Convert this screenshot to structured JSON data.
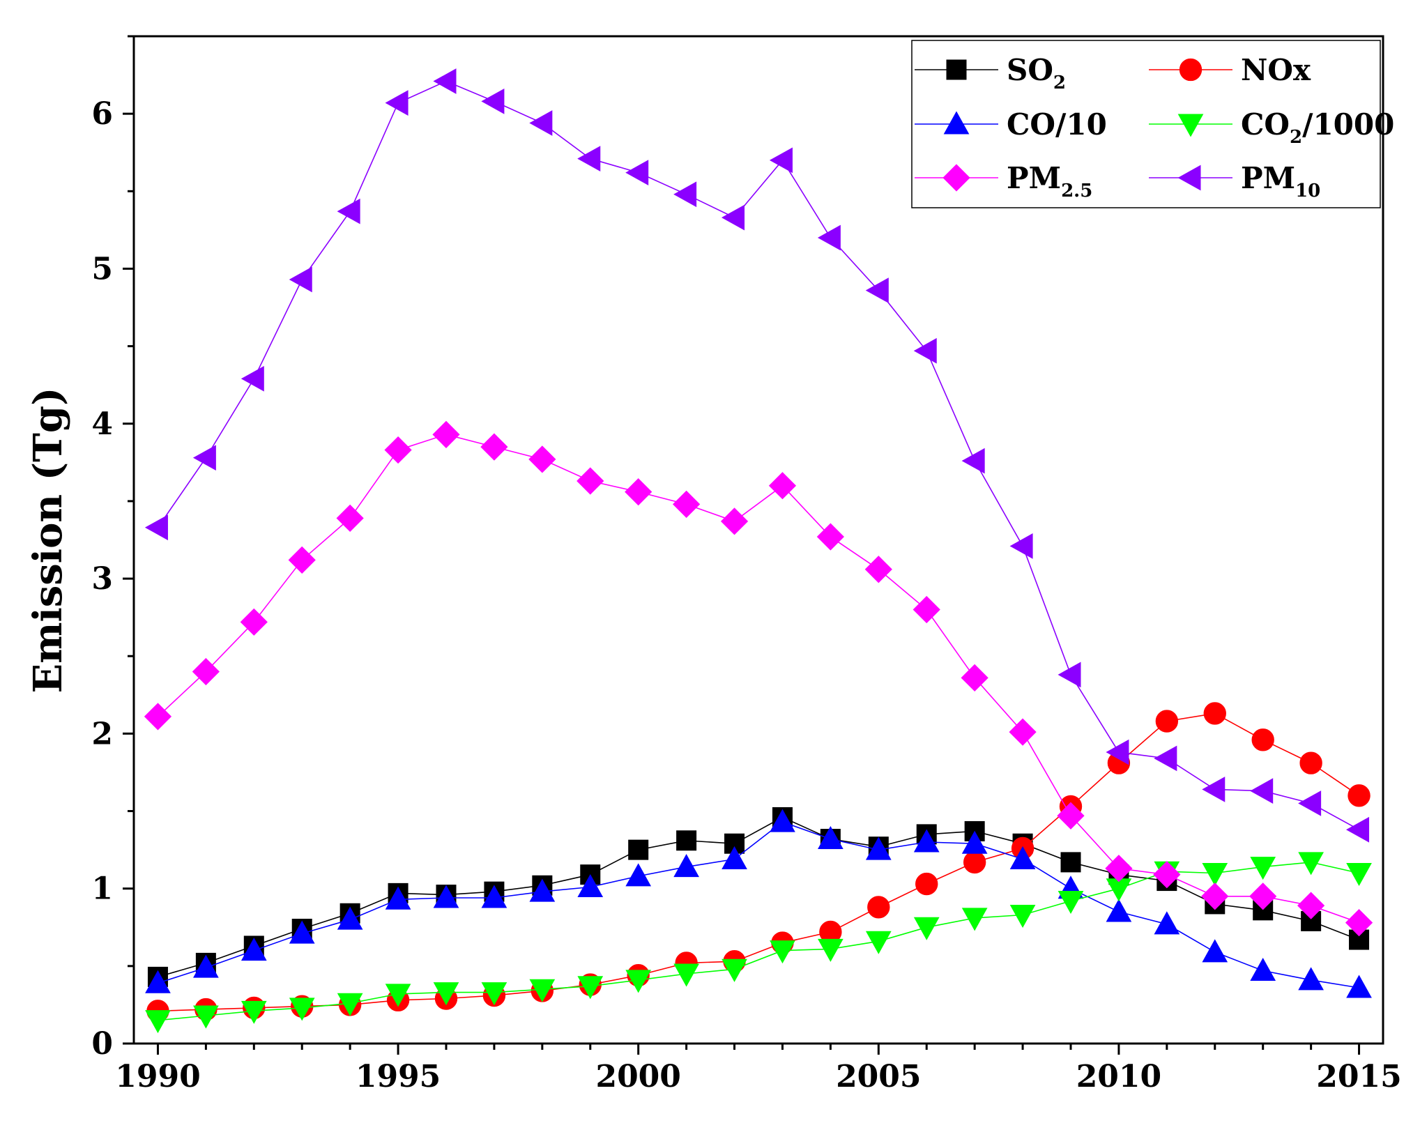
{
  "chart_data": {
    "type": "line",
    "title": "",
    "xlabel": "",
    "ylabel": "Emission (Tg)",
    "xlim": [
      1989.5,
      2015.5
    ],
    "ylim": [
      0,
      6.5
    ],
    "x_ticks": [
      1990,
      1995,
      2000,
      2005,
      2010,
      2015
    ],
    "y_ticks": [
      0,
      1,
      2,
      3,
      4,
      5,
      6
    ],
    "grid": false,
    "legend_position": "top-right",
    "x": [
      1990,
      1991,
      1992,
      1993,
      1994,
      1995,
      1996,
      1997,
      1998,
      1999,
      2000,
      2001,
      2002,
      2003,
      2004,
      2005,
      2006,
      2007,
      2008,
      2009,
      2010,
      2011,
      2012,
      2013,
      2014,
      2015
    ],
    "series": [
      {
        "name": "SO2",
        "label_main": "SO",
        "label_sub": "2",
        "label_tail": "",
        "color": "#000000",
        "marker": "square",
        "values": [
          0.43,
          0.52,
          0.63,
          0.74,
          0.84,
          0.97,
          0.96,
          0.98,
          1.02,
          1.09,
          1.25,
          1.31,
          1.29,
          1.46,
          1.32,
          1.27,
          1.35,
          1.37,
          1.29,
          1.17,
          1.09,
          1.05,
          0.9,
          0.86,
          0.79,
          0.67
        ]
      },
      {
        "name": "NOx",
        "label_main": "NOx",
        "label_sub": "",
        "label_tail": "",
        "color": "#ff0000",
        "marker": "circle",
        "values": [
          0.21,
          0.22,
          0.23,
          0.24,
          0.25,
          0.28,
          0.29,
          0.31,
          0.34,
          0.38,
          0.44,
          0.52,
          0.53,
          0.65,
          0.72,
          0.88,
          1.03,
          1.17,
          1.26,
          1.53,
          1.81,
          2.08,
          2.13,
          1.96,
          1.81,
          1.6
        ]
      },
      {
        "name": "CO/10",
        "label_main": "CO/10",
        "label_sub": "",
        "label_tail": "",
        "color": "#0000ff",
        "marker": "triangle-up",
        "values": [
          0.39,
          0.49,
          0.6,
          0.71,
          0.8,
          0.93,
          0.94,
          0.94,
          0.98,
          1.01,
          1.08,
          1.14,
          1.19,
          1.43,
          1.32,
          1.25,
          1.3,
          1.29,
          1.19,
          1.0,
          0.85,
          0.77,
          0.59,
          0.47,
          0.41,
          0.36
        ]
      },
      {
        "name": "CO2/1000",
        "label_main": "CO",
        "label_sub": "2",
        "label_tail": "/1000",
        "color": "#00ff00",
        "marker": "triangle-down",
        "values": [
          0.15,
          0.18,
          0.21,
          0.23,
          0.26,
          0.32,
          0.33,
          0.33,
          0.35,
          0.37,
          0.41,
          0.45,
          0.48,
          0.6,
          0.61,
          0.66,
          0.75,
          0.81,
          0.83,
          0.92,
          1.0,
          1.11,
          1.1,
          1.14,
          1.17,
          1.1
        ]
      },
      {
        "name": "PM2.5",
        "label_main": "PM",
        "label_sub": "2.5",
        "label_tail": "",
        "color": "#ff00ff",
        "marker": "diamond",
        "values": [
          2.11,
          2.4,
          2.72,
          3.12,
          3.39,
          3.83,
          3.93,
          3.85,
          3.77,
          3.63,
          3.56,
          3.48,
          3.37,
          3.6,
          3.27,
          3.06,
          2.8,
          2.36,
          2.01,
          1.47,
          1.13,
          1.09,
          0.95,
          0.95,
          0.89,
          0.78
        ]
      },
      {
        "name": "PM10",
        "label_main": "PM",
        "label_sub": "10",
        "label_tail": "",
        "color": "#8b00ff",
        "marker": "triangle-left",
        "values": [
          3.33,
          3.78,
          4.29,
          4.93,
          5.37,
          6.07,
          6.21,
          6.08,
          5.94,
          5.71,
          5.62,
          5.48,
          5.33,
          5.7,
          5.2,
          4.86,
          4.47,
          3.76,
          3.21,
          2.38,
          1.88,
          1.84,
          1.64,
          1.63,
          1.55,
          1.38
        ]
      }
    ]
  }
}
